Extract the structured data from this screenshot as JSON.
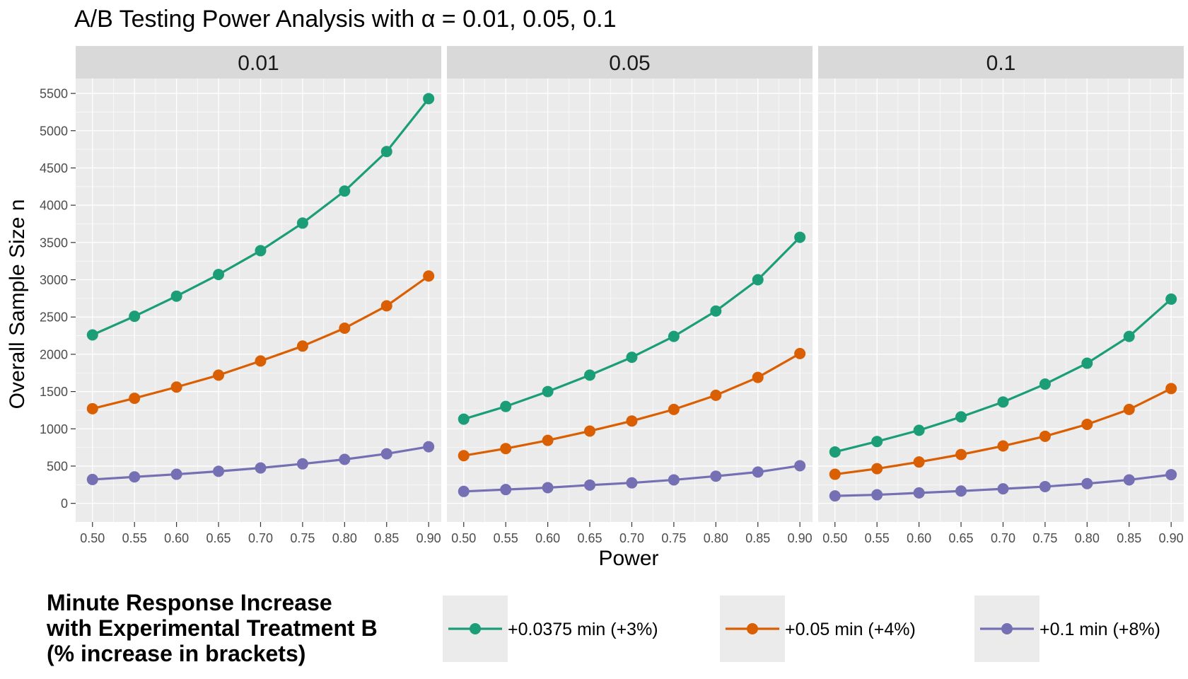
{
  "chart_data": {
    "type": "line",
    "title": "A/B Testing Power Analysis with α = 0.01, 0.05, 0.1",
    "xlabel": "Power",
    "ylabel": "Overall Sample Size n",
    "x": [
      0.5,
      0.55,
      0.6,
      0.65,
      0.7,
      0.75,
      0.8,
      0.85,
      0.9
    ],
    "x_tick_labels": [
      "0.50",
      "0.55",
      "0.60",
      "0.65",
      "0.70",
      "0.75",
      "0.80",
      "0.85",
      "0.90"
    ],
    "xlim": [
      0.48,
      0.915
    ],
    "y_ticks": [
      0,
      500,
      1000,
      1500,
      2000,
      2500,
      3000,
      3500,
      4000,
      4500,
      5000,
      5500
    ],
    "ylim": [
      -250,
      5700
    ],
    "grid": true,
    "legend": {
      "position": "bottom",
      "title_lines": [
        "Minute Response Increase",
        "with Experimental Treatment B",
        "(% increase in brackets)"
      ]
    },
    "series_meta": [
      {
        "name": "+0.0375 min (+3%)",
        "color": "#1b9e77"
      },
      {
        "name": "+0.05 min (+4%)",
        "color": "#d95f02"
      },
      {
        "name": "+0.1 min (+8%)",
        "color": "#7570b3"
      }
    ],
    "panels": [
      {
        "label": "0.01",
        "series": [
          {
            "name": "+0.0375 min (+3%)",
            "values": [
              2260,
              2510,
              2780,
              3070,
              3390,
              3760,
              4190,
              4720,
              5430
            ]
          },
          {
            "name": "+0.05 min (+4%)",
            "values": [
              1270,
              1410,
              1560,
              1720,
              1910,
              2110,
              2350,
              2650,
              3050
            ]
          },
          {
            "name": "+0.1 min (+8%)",
            "values": [
              320,
              355,
              390,
              430,
              475,
              530,
              590,
              665,
              760
            ]
          }
        ]
      },
      {
        "label": "0.05",
        "series": [
          {
            "name": "+0.0375 min (+3%)",
            "values": [
              1130,
              1300,
              1500,
              1720,
              1960,
              2240,
              2580,
              3000,
              3570
            ]
          },
          {
            "name": "+0.05 min (+4%)",
            "values": [
              640,
              735,
              845,
              970,
              1105,
              1260,
              1450,
              1690,
              2010
            ]
          },
          {
            "name": "+0.1 min (+8%)",
            "values": [
              160,
              185,
              210,
              245,
              275,
              315,
              365,
              420,
              505
            ]
          }
        ]
      },
      {
        "label": "0.1",
        "series": [
          {
            "name": "+0.0375 min (+3%)",
            "values": [
              690,
              830,
              980,
              1160,
              1360,
              1600,
              1880,
              2240,
              2740
            ]
          },
          {
            "name": "+0.05 min (+4%)",
            "values": [
              390,
              465,
              555,
              655,
              770,
              900,
              1060,
              1260,
              1540
            ]
          },
          {
            "name": "+0.1 min (+8%)",
            "values": [
              100,
              115,
              140,
              165,
              195,
              225,
              265,
              315,
              385
            ]
          }
        ]
      }
    ]
  }
}
